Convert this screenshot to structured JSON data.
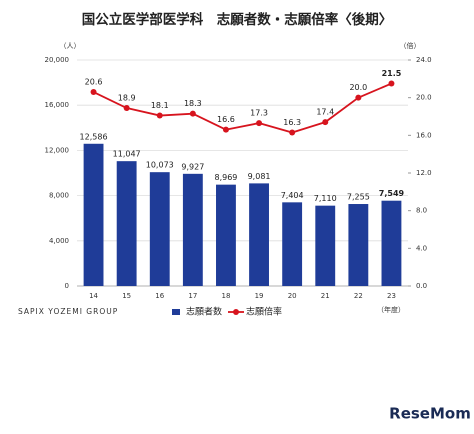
{
  "chart_data": {
    "type": "bar_line",
    "title": "国公立医学部医学科　志願者数・志願倍率〈後期〉",
    "ylabel": "（人）",
    "y2label": "（倍）",
    "xlabel": "（年度）",
    "source": "SAPIX YOZEMI GROUP",
    "watermark": "ReseMom",
    "categories": [
      "14",
      "15",
      "16",
      "17",
      "18",
      "19",
      "20",
      "21",
      "22",
      "23"
    ],
    "series": [
      {
        "name": "志願者数",
        "color": "#1f3c98",
        "type": "bar",
        "values": [
          12586,
          11047,
          10073,
          9927,
          8969,
          9081,
          7404,
          7110,
          7255,
          7549
        ],
        "value_labels": [
          "12,586",
          "11,047",
          "10,073",
          "9,927",
          "8,969",
          "9,081",
          "7,404",
          "7,110",
          "7,255",
          "7,549"
        ]
      },
      {
        "name": "志願倍率",
        "color": "#d7141e",
        "type": "line",
        "axis": "y2",
        "values": [
          20.6,
          18.9,
          18.1,
          18.3,
          16.6,
          17.3,
          16.3,
          17.4,
          20.0,
          21.5
        ],
        "value_labels": [
          "20.6",
          "18.9",
          "18.1",
          "18.3",
          "16.6",
          "17.3",
          "16.3",
          "17.4",
          "20.0",
          "21.5"
        ]
      }
    ],
    "ylim": [
      0,
      20000
    ],
    "yticks": [
      0,
      {
        "value": 4000,
        "label": "4,000"
      },
      {
        "value": 8000,
        "label": "8,000"
      },
      {
        "value": 12000,
        "label": "12,000"
      },
      {
        "value": 16000,
        "label": "16,000"
      },
      {
        "value": 20000,
        "label": "20,000"
      }
    ],
    "y2lim": [
      0,
      24
    ],
    "y2ticks": [
      {
        "value": 0,
        "label": "0.0"
      },
      {
        "value": 4,
        "label": "4.0"
      },
      {
        "value": 8,
        "label": "8.0"
      },
      {
        "value": 12,
        "label": "12.0"
      },
      {
        "value": 16,
        "label": "16.0"
      },
      {
        "value": 20,
        "label": "20.0"
      },
      {
        "value": 24,
        "label": "24.0"
      }
    ],
    "grid": true
  }
}
